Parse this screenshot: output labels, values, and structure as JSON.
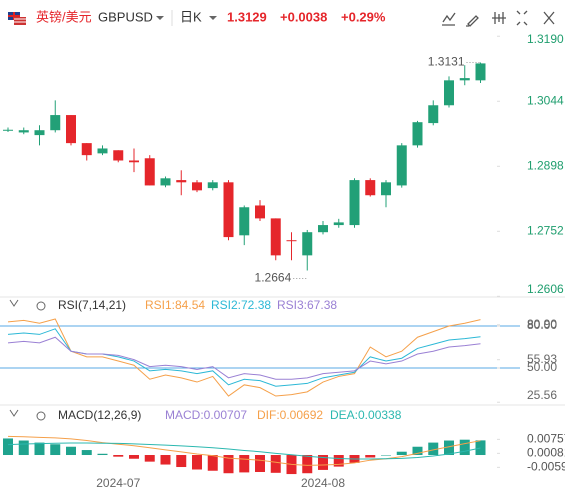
{
  "header": {
    "name": "英镑/美元",
    "symbol": "GBPUSD",
    "period": "日K",
    "price": "1.3129",
    "change": "+0.0038",
    "change_pct": "+0.29%"
  },
  "chart_data": [
    {
      "type": "candlestick",
      "categories": [
        null,
        null,
        null,
        null,
        null,
        null,
        null,
        "2024-07",
        null,
        null,
        null,
        null,
        null,
        null,
        null,
        null,
        null,
        null,
        null,
        null,
        "2024-08",
        null,
        null,
        null,
        null,
        null,
        null,
        null,
        null,
        null,
        null
      ],
      "open": [
        1.2979,
        1.2974,
        1.2968,
        1.2979,
        1.3013,
        1.295,
        1.2927,
        1.2934,
        1.2911,
        1.2916,
        1.2855,
        1.2867,
        1.2862,
        1.2849,
        1.2862,
        1.2743,
        1.281,
        1.2781,
        1.2732,
        1.2698,
        1.275,
        1.2766,
        1.2766,
        1.2867,
        1.2833,
        1.2855,
        1.2945,
        1.2995,
        1.3035,
        1.3091,
        1.3091
      ],
      "high": [
        1.2985,
        1.2985,
        1.299,
        1.3046,
        1.3013,
        1.295,
        1.2945,
        1.2934,
        1.2938,
        1.2923,
        1.2875,
        1.2889,
        1.2867,
        1.2867,
        1.2867,
        1.281,
        1.2822,
        1.2781,
        1.275,
        1.2755,
        1.2775,
        1.278,
        1.2871,
        1.2871,
        1.2867,
        1.295,
        1.3,
        1.3046,
        1.31,
        1.3125,
        1.3131
      ],
      "low": [
        1.2975,
        1.297,
        1.2945,
        1.2974,
        1.2945,
        1.2911,
        1.2923,
        1.2907,
        1.2885,
        1.2855,
        1.2851,
        1.2833,
        1.284,
        1.2844,
        1.2732,
        1.2721,
        1.2775,
        1.2687,
        1.2687,
        1.2664,
        1.2745,
        1.276,
        1.276,
        1.283,
        1.2806,
        1.285,
        1.294,
        1.299,
        1.303,
        1.308,
        1.3085
      ],
      "close": [
        1.298,
        1.2979,
        1.2979,
        1.3013,
        1.295,
        1.2923,
        1.2938,
        1.2911,
        1.2907,
        1.2855,
        1.2871,
        1.2862,
        1.2844,
        1.2862,
        1.2739,
        1.2806,
        1.2781,
        1.2698,
        1.273,
        1.275,
        1.2766,
        1.2772,
        1.2867,
        1.2833,
        1.2862,
        1.2945,
        1.2997,
        1.3035,
        1.3091,
        1.3096,
        1.3129
      ],
      "up_color": "#22a077",
      "down_color": "#e5262b",
      "high_label": "1.3131",
      "low_label": "1.2664",
      "ylim": [
        1.26,
        1.3204
      ],
      "yticks": [
        {
          "value": 1.319,
          "label": "1.3190"
        },
        1.3044,
        1.2898,
        1.2752,
        1.2606
      ]
    },
    {
      "type": "line",
      "title": "RSI(7,14,21)",
      "series": [
        {
          "name": "RSI1",
          "legend_label": "RSI1:84.54",
          "color": "#f5a04a",
          "values": [
            83,
            84,
            82,
            85,
            62,
            58,
            58,
            55,
            52,
            42,
            45,
            43,
            40,
            44,
            30,
            38,
            36,
            30,
            31,
            33,
            40,
            44,
            46,
            65,
            58,
            62,
            72,
            76,
            80,
            82,
            84.54
          ]
        },
        {
          "name": "RSI2",
          "legend_label": "RSI2:72.38",
          "color": "#2cb8d6",
          "values": [
            74,
            75,
            74,
            78,
            62,
            60,
            60,
            58,
            55,
            48,
            49,
            48,
            46,
            48,
            38,
            42,
            41,
            37,
            38,
            39,
            43,
            45,
            47,
            58,
            55,
            57,
            64,
            67,
            70,
            71,
            72.38
          ]
        },
        {
          "name": "RSI3",
          "legend_label": "RSI3:67.38",
          "color": "#9a80d4",
          "values": [
            68,
            69,
            68,
            72,
            62,
            60,
            60,
            59,
            56,
            51,
            52,
            51,
            49,
            51,
            43,
            46,
            45,
            42,
            42,
            43,
            46,
            47,
            48,
            55,
            53,
            55,
            60,
            62,
            65,
            66,
            67.38
          ]
        }
      ],
      "reference_lines": [
        80,
        50
      ],
      "reference_color": "#5aa8e4",
      "ylim": [
        23.6,
        89.3
      ],
      "yticks": [
        {
          "value": 80.9,
          "label": "80.90"
        },
        {
          "value": 80,
          "label": "80.00"
        },
        55.93,
        {
          "value": 50,
          "label": "50.00"
        },
        25.56
      ]
    },
    {
      "type": "bar",
      "title": "MACD(12,26,9)",
      "name": "MACD",
      "legend_label": "MACD:0.00707",
      "legend_color": "#9a80d4",
      "values": [
        0.008,
        0.007,
        0.006,
        0.0052,
        0.004,
        0.0024,
        0.0006,
        -0.0008,
        -0.0018,
        -0.0032,
        -0.0046,
        -0.0058,
        -0.007,
        -0.0076,
        -0.0088,
        -0.0084,
        -0.0082,
        -0.0086,
        -0.0092,
        -0.0088,
        -0.0072,
        -0.0056,
        -0.0038,
        -0.0012,
        0,
        0.0016,
        0.004,
        0.006,
        0.007,
        0.0074,
        0.00707
      ],
      "positive_color": "#1fa38e",
      "negative_color": "#e5262b",
      "series": [
        {
          "name": "DIF",
          "legend_label": "DIF:0.00692",
          "color": "#f5a04a",
          "values": [
            0.009,
            0.0088,
            0.0085,
            0.0083,
            0.0078,
            0.007,
            0.006,
            0.0052,
            0.0045,
            0.0035,
            0.0025,
            0.0015,
            0.0005,
            -0.0003,
            -0.0015,
            -0.002,
            -0.0025,
            -0.0035,
            -0.0045,
            -0.005,
            -0.0048,
            -0.0045,
            -0.0038,
            -0.0025,
            -0.0018,
            -0.0008,
            0.0008,
            0.0025,
            0.004,
            0.0055,
            0.00692
          ]
        },
        {
          "name": "DEA",
          "legend_label": "DEA:0.00338",
          "color": "#2cb8b0",
          "values": [
            0.005,
            0.0053,
            0.0055,
            0.0057,
            0.0058,
            0.0058,
            0.0057,
            0.0056,
            0.0054,
            0.0051,
            0.0048,
            0.0044,
            0.004,
            0.0035,
            0.0029,
            0.0022,
            0.0016,
            0.0008,
            0.0001,
            -0.0006,
            -0.0012,
            -0.0017,
            -0.0019,
            -0.0019,
            -0.0018,
            -0.0016,
            -0.0012,
            -0.0005,
            0.0005,
            0.0018,
            0.00338
          ]
        }
      ],
      "ylim": [
        -0.0169,
        0.0145
      ],
      "yticks": [
        0.00757,
        0.00081,
        -0.00596
      ]
    }
  ]
}
